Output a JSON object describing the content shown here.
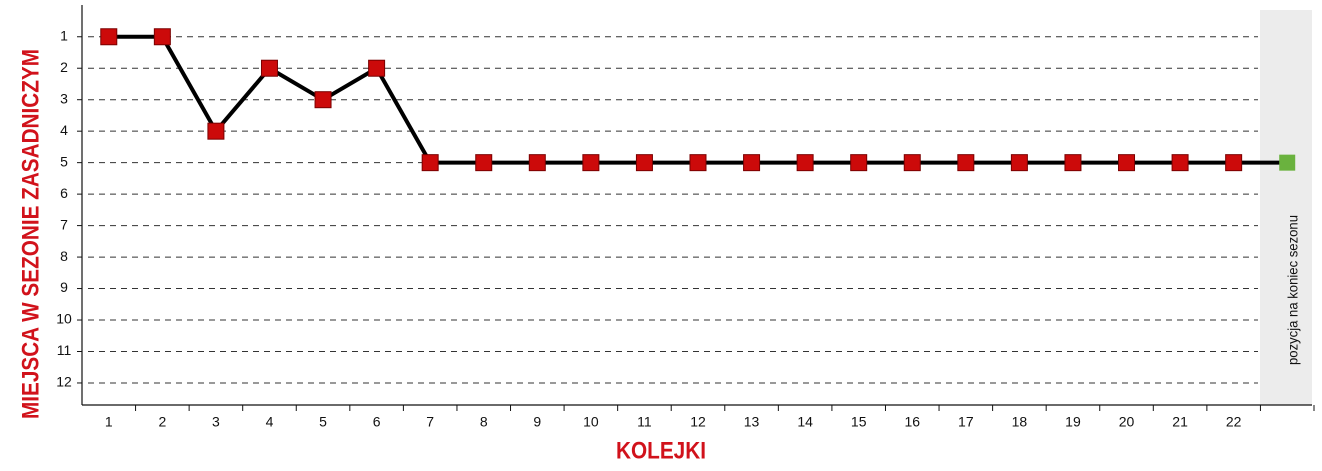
{
  "chart_data": {
    "type": "line",
    "x_label": "KOLEJKI",
    "y_label": "MIEJSCA W SEZONIE ZASADNICZYM",
    "categories": [
      "1",
      "2",
      "3",
      "4",
      "5",
      "6",
      "7",
      "8",
      "9",
      "10",
      "11",
      "12",
      "13",
      "14",
      "15",
      "16",
      "17",
      "18",
      "19",
      "20",
      "21",
      "22",
      null
    ],
    "last_category_label": "pozycja na koniec sezonu",
    "series": [
      {
        "color": "#000000",
        "marker_color": "#cc0a0a",
        "last_marker_color": "#6ab23e",
        "values": [
          1,
          1,
          4,
          2,
          3,
          2,
          5,
          5,
          5,
          5,
          5,
          5,
          5,
          5,
          5,
          5,
          5,
          5,
          5,
          5,
          5,
          5,
          5
        ]
      }
    ],
    "ylim": [
      12.7,
      0.15
    ],
    "yticks": [
      1,
      2,
      3,
      4,
      5,
      6,
      7,
      8,
      9,
      10,
      11,
      12
    ],
    "grid": true
  }
}
